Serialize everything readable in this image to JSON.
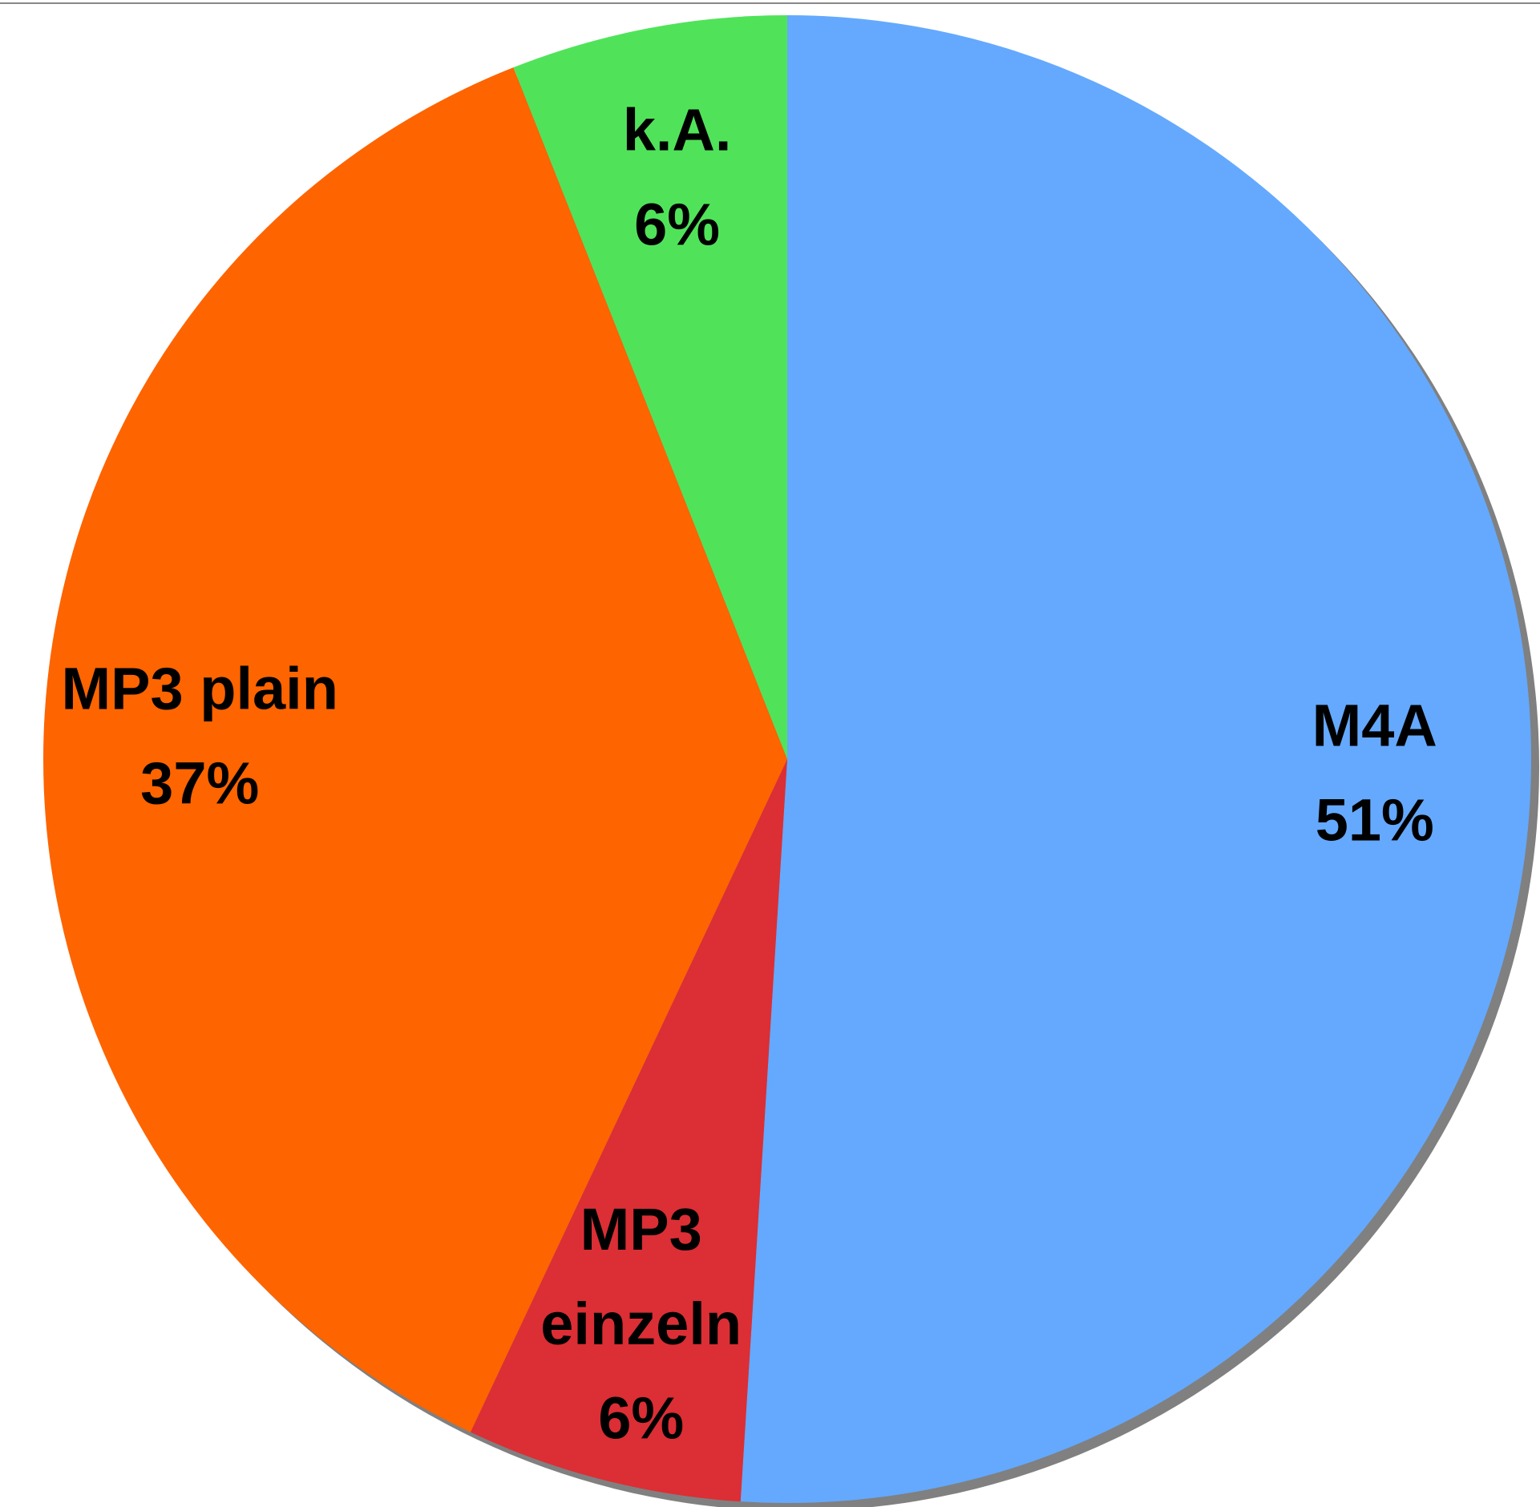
{
  "chart_data": {
    "type": "pie",
    "categories": [
      "M4A",
      "MP3 einzeln",
      "MP3 plain",
      "k.A."
    ],
    "values": [
      51,
      6,
      37,
      6
    ],
    "value_labels": [
      "51%",
      "6%",
      "37%",
      "6%"
    ],
    "colors": [
      "#64a9fd",
      "#dc2e35",
      "#fe6400",
      "#50e35a"
    ]
  }
}
